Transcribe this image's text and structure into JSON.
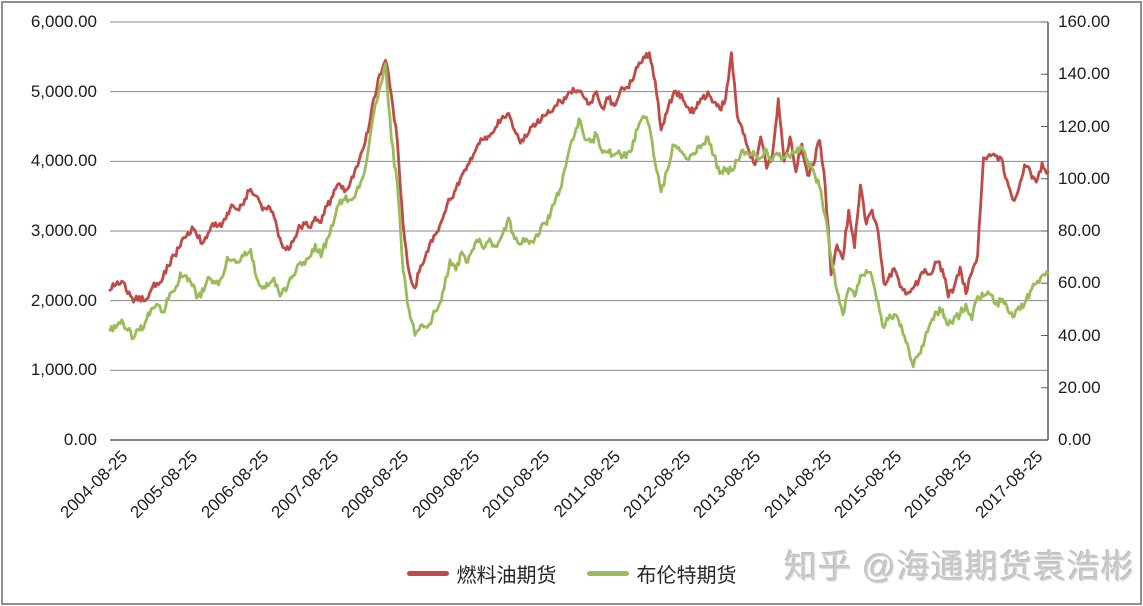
{
  "watermark": {
    "text": "知乎 @海通期货袁浩彬"
  },
  "chart_data": {
    "type": "line",
    "title": "",
    "grid": "horizontal",
    "legend_position": "bottom-center",
    "x_axis": {
      "tick_labels": [
        "2004-08-25",
        "2005-08-25",
        "2006-08-25",
        "2007-08-25",
        "2008-08-25",
        "2009-08-25",
        "2010-08-25",
        "2011-08-25",
        "2012-08-25",
        "2013-08-25",
        "2014-08-25",
        "2015-08-25",
        "2016-08-25",
        "2017-08-25"
      ],
      "label_rotation_deg": -45,
      "range_start": "2004-08",
      "range_end": "2017-12"
    },
    "left_axis": {
      "min": 0,
      "max": 6000,
      "step": 1000,
      "tick_labels": [
        "6,000.00",
        "5,000.00",
        "4,000.00",
        "3,000.00",
        "2,000.00",
        "1,000.00",
        "0.00"
      ]
    },
    "right_axis": {
      "min": 0,
      "max": 160,
      "step": 20,
      "tick_labels": [
        "160.00",
        "140.00",
        "120.00",
        "100.00",
        "80.00",
        "60.00",
        "40.00",
        "20.00",
        "0.00"
      ]
    },
    "values_granularity": "monthly approximation digitized from daily chart, Aug 2004 - Dec 2017",
    "series": [
      {
        "id": "fuel-oil",
        "name": "燃料油期货",
        "color": "#bf4b47",
        "axis": "left",
        "monthly_values": [
          2150,
          2230,
          2280,
          2100,
          1980,
          2060,
          2000,
          2150,
          2250,
          2320,
          2500,
          2650,
          2780,
          2920,
          3060,
          2900,
          2850,
          3000,
          3120,
          3060,
          3260,
          3360,
          3300,
          3460,
          3600,
          3500,
          3300,
          3360,
          3200,
          2900,
          2730,
          2850,
          3000,
          3120,
          3050,
          3200,
          3120,
          3360,
          3500,
          3680,
          3560,
          3700,
          3920,
          4150,
          4420,
          4900,
          5250,
          5450,
          4950,
          4300,
          3100,
          2420,
          2180,
          2500,
          2700,
          2850,
          3000,
          3250,
          3450,
          3600,
          3800,
          3950,
          4100,
          4250,
          4350,
          4400,
          4500,
          4650,
          4690,
          4450,
          4260,
          4350,
          4500,
          4600,
          4650,
          4700,
          4800,
          4850,
          4950,
          5050,
          5000,
          4900,
          4850,
          5000,
          4760,
          4900,
          4800,
          5000,
          5060,
          5150,
          5350,
          5500,
          5560,
          5150,
          4450,
          4700,
          4950,
          5000,
          4850,
          4700,
          4760,
          4900,
          5000,
          4850,
          4750,
          4900,
          5560,
          4650,
          4400,
          4150,
          3950,
          4350,
          3900,
          4100,
          4900,
          4000,
          4350,
          3850,
          4250,
          3800,
          3950,
          4300,
          3650,
          2370,
          2800,
          2600,
          3300,
          2760,
          3660,
          3100,
          3300,
          3000,
          2250,
          2380,
          2420,
          2200,
          2100,
          2180,
          2300,
          2450,
          2380,
          2550,
          2450,
          2050,
          2200,
          2480,
          2100,
          2400,
          2650,
          4050,
          4100,
          4080,
          4050,
          3730,
          3450,
          3600,
          3950,
          3850,
          3700,
          3980,
          3850
        ]
      },
      {
        "id": "brent",
        "name": "布伦特期货",
        "color": "#9abb59",
        "axis": "right",
        "monthly_values": [
          42,
          43,
          46,
          42,
          39,
          42,
          45,
          50,
          52,
          49,
          54,
          57,
          64,
          63,
          59,
          55,
          57,
          62,
          60,
          62,
          70,
          69,
          68,
          72,
          73,
          62,
          58,
          59,
          62,
          55,
          57,
          62,
          67,
          68,
          70,
          75,
          70,
          77,
          82,
          90,
          92,
          92,
          95,
          100,
          110,
          125,
          135,
          144,
          115,
          98,
          65,
          50,
          40,
          44,
          43,
          47,
          51,
          58,
          69,
          65,
          72,
          68,
          73,
          77,
          74,
          76,
          74,
          79,
          85,
          77,
          75,
          77,
          76,
          78,
          83,
          85,
          92,
          97,
          108,
          115,
          123,
          115,
          114,
          117,
          110,
          110,
          109,
          110,
          108,
          111,
          119,
          124,
          120,
          106,
          95,
          103,
          113,
          112,
          109,
          109,
          110,
          113,
          116,
          109,
          102,
          103,
          103,
          107,
          111,
          109,
          109,
          108,
          111,
          107,
          109,
          108,
          108,
          110,
          112,
          107,
          103,
          97,
          86,
          70,
          57,
          48,
          58,
          55,
          63,
          65,
          62,
          53,
          43,
          48,
          48,
          44,
          37,
          28,
          33,
          39,
          45,
          49,
          50,
          44,
          47,
          48,
          52,
          46,
          55,
          55,
          56,
          52,
          53,
          51,
          47,
          51,
          52,
          57,
          60,
          63,
          64
        ]
      }
    ]
  }
}
